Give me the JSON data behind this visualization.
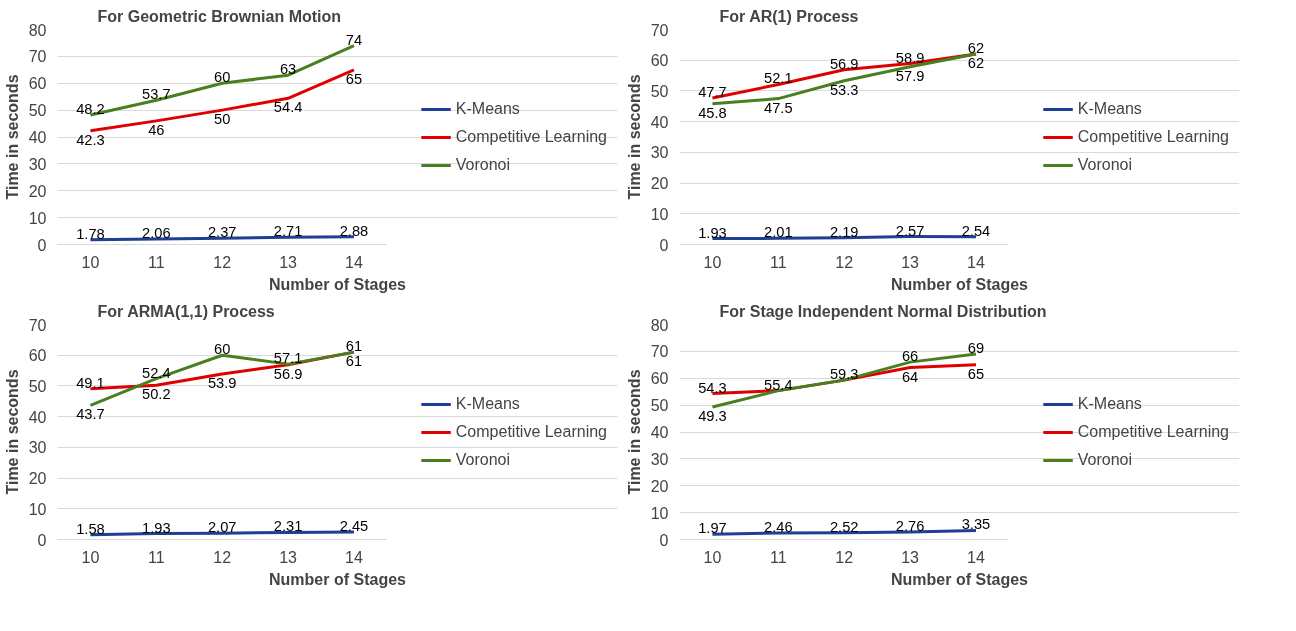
{
  "chart_data": [
    {
      "type": "line",
      "title": "For Geometric Brownian Motion",
      "xlabel": "Number of Stages",
      "ylabel": "Time in seconds",
      "categories": [
        "10",
        "11",
        "12",
        "13",
        "14"
      ],
      "ylim": [
        0,
        80
      ],
      "yticks": [
        0,
        10,
        20,
        30,
        40,
        50,
        60,
        70,
        80
      ],
      "grid": "y",
      "legend": "right",
      "data_labels": true,
      "series": [
        {
          "name": "K-Means",
          "color": "#1f3f94",
          "values": [
            1.78,
            2.06,
            2.37,
            2.71,
            2.88
          ]
        },
        {
          "name": "Competitive Learning",
          "color": "#e00000",
          "values": [
            42.3,
            46,
            50,
            54.4,
            65
          ]
        },
        {
          "name": "Voronoi",
          "color": "#4a7f1f",
          "values": [
            48.2,
            53.7,
            60,
            63,
            74
          ]
        }
      ]
    },
    {
      "type": "line",
      "title": "For AR(1) Process",
      "xlabel": "Number of Stages",
      "ylabel": "Time in seconds",
      "categories": [
        "10",
        "11",
        "12",
        "13",
        "14"
      ],
      "ylim": [
        0,
        70
      ],
      "yticks": [
        0,
        10,
        20,
        30,
        40,
        50,
        60,
        70
      ],
      "grid": "y",
      "legend": "right",
      "data_labels": true,
      "series": [
        {
          "name": "K-Means",
          "color": "#1f3f94",
          "values": [
            1.93,
            2.01,
            2.19,
            2.57,
            2.54
          ]
        },
        {
          "name": "Competitive Learning",
          "color": "#e00000",
          "values": [
            47.7,
            52.1,
            56.9,
            58.9,
            62
          ]
        },
        {
          "name": "Voronoi",
          "color": "#4a7f1f",
          "values": [
            45.8,
            47.5,
            53.3,
            57.9,
            62
          ]
        }
      ]
    },
    {
      "type": "line",
      "title": "For ARMA(1,1) Process",
      "xlabel": "Number of Stages",
      "ylabel": "Time in seconds",
      "categories": [
        "10",
        "11",
        "12",
        "13",
        "14"
      ],
      "ylim": [
        0,
        70
      ],
      "yticks": [
        0,
        10,
        20,
        30,
        40,
        50,
        60,
        70
      ],
      "grid": "y",
      "legend": "right",
      "data_labels": true,
      "series": [
        {
          "name": "K-Means",
          "color": "#1f3f94",
          "values": [
            1.58,
            1.93,
            2.07,
            2.31,
            2.45
          ]
        },
        {
          "name": "Competitive Learning",
          "color": "#e00000",
          "values": [
            49.1,
            50.2,
            53.9,
            56.9,
            61
          ]
        },
        {
          "name": "Voronoi",
          "color": "#4a7f1f",
          "values": [
            43.7,
            52.4,
            60,
            57.1,
            61
          ]
        }
      ]
    },
    {
      "type": "line",
      "title": "For Stage Independent Normal Distribution",
      "xlabel": "Number of Stages",
      "ylabel": "Time in seconds",
      "categories": [
        "10",
        "11",
        "12",
        "13",
        "14"
      ],
      "ylim": [
        0,
        80
      ],
      "yticks": [
        0,
        10,
        20,
        30,
        40,
        50,
        60,
        70,
        80
      ],
      "grid": "y",
      "legend": "right",
      "series": [
        {
          "name": "K-Means",
          "color": "#1f3f94",
          "values": [
            1.97,
            2.46,
            2.52,
            2.76,
            3.35
          ],
          "value_labels": [
            "1.97",
            "2.46",
            "2.52",
            "2.76",
            "3.35"
          ]
        },
        {
          "name": "Competitive Learning",
          "color": "#e00000",
          "values": [
            54.3,
            55.4,
            59.3,
            64,
            65
          ],
          "value_labels": [
            "54.3",
            "55.4",
            "59.3",
            "64",
            "65"
          ]
        },
        {
          "name": "Voronoi",
          "color": "#4a7f1f",
          "values": [
            49.3,
            55.4,
            59.3,
            66,
            69
          ],
          "value_labels": [
            "49.3",
            null,
            null,
            "66",
            "69"
          ]
        }
      ]
    }
  ]
}
